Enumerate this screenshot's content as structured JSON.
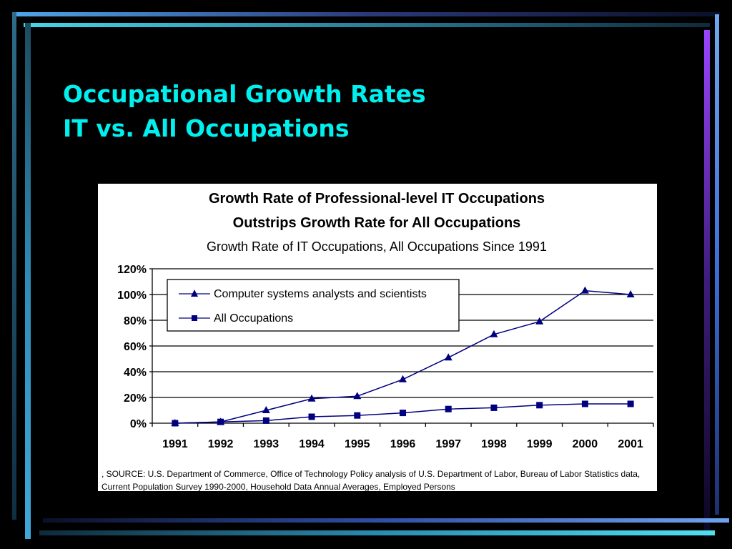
{
  "slide": {
    "title_line1": "Occupational Growth Rates",
    "title_line2": "IT vs. All Occupations"
  },
  "colors": {
    "background": "#000000",
    "title": "#00F0F0",
    "series": "#00007F",
    "frame_cyan": "#33D6E6",
    "frame_blue": "#4F7FE8",
    "frame_purple": "#8A3CFF"
  },
  "chart_data": {
    "type": "line",
    "title_line1": "Growth Rate of Professional-level IT Occupations",
    "title_line2": "Outstrips Growth Rate for All Occupations",
    "subtitle": "Growth Rate of IT Occupations, All Occupations Since 1991",
    "categories": [
      "1991",
      "1992",
      "1993",
      "1994",
      "1995",
      "1996",
      "1997",
      "1998",
      "1999",
      "2000",
      "2001"
    ],
    "y_ticks": [
      "0%",
      "20%",
      "40%",
      "60%",
      "80%",
      "100%",
      "120%"
    ],
    "ylim": [
      0,
      120
    ],
    "grid": true,
    "legend_position": "top-left",
    "series": [
      {
        "name": "Computer systems analysts and scientists",
        "marker": "triangle",
        "values": [
          0,
          1,
          10,
          19,
          21,
          34,
          51,
          69,
          79,
          103,
          100
        ]
      },
      {
        "name": "All Occupations",
        "marker": "square",
        "values": [
          0,
          1,
          2,
          5,
          6,
          8,
          11,
          12,
          14,
          15,
          15
        ]
      }
    ],
    "source": ", SOURCE:  U.S. Department of Commerce, Office of Technology Policy analysis of U.S. Department of Labor, Bureau of Labor Statistics data, Current Population Survey 1990-2000, Household Data Annual Averages, Employed Persons"
  }
}
